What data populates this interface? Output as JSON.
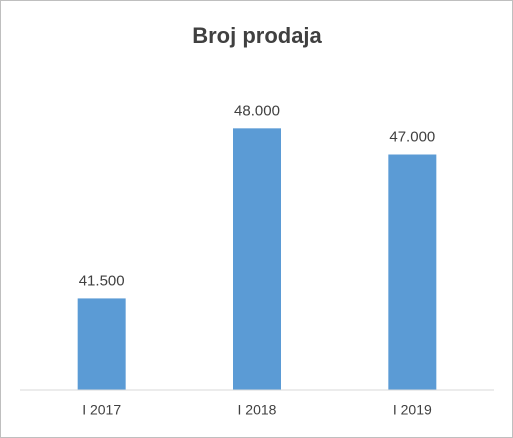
{
  "chart_data": {
    "type": "bar",
    "title": "Broj prodaja",
    "categories": [
      "I 2017",
      "I 2018",
      "I 2019"
    ],
    "values": [
      41500,
      48000,
      47000
    ],
    "value_labels": [
      "41.500",
      "48.000",
      "47.000"
    ],
    "color": "#5b9bd5",
    "ylim": [
      38000,
      50000
    ]
  }
}
